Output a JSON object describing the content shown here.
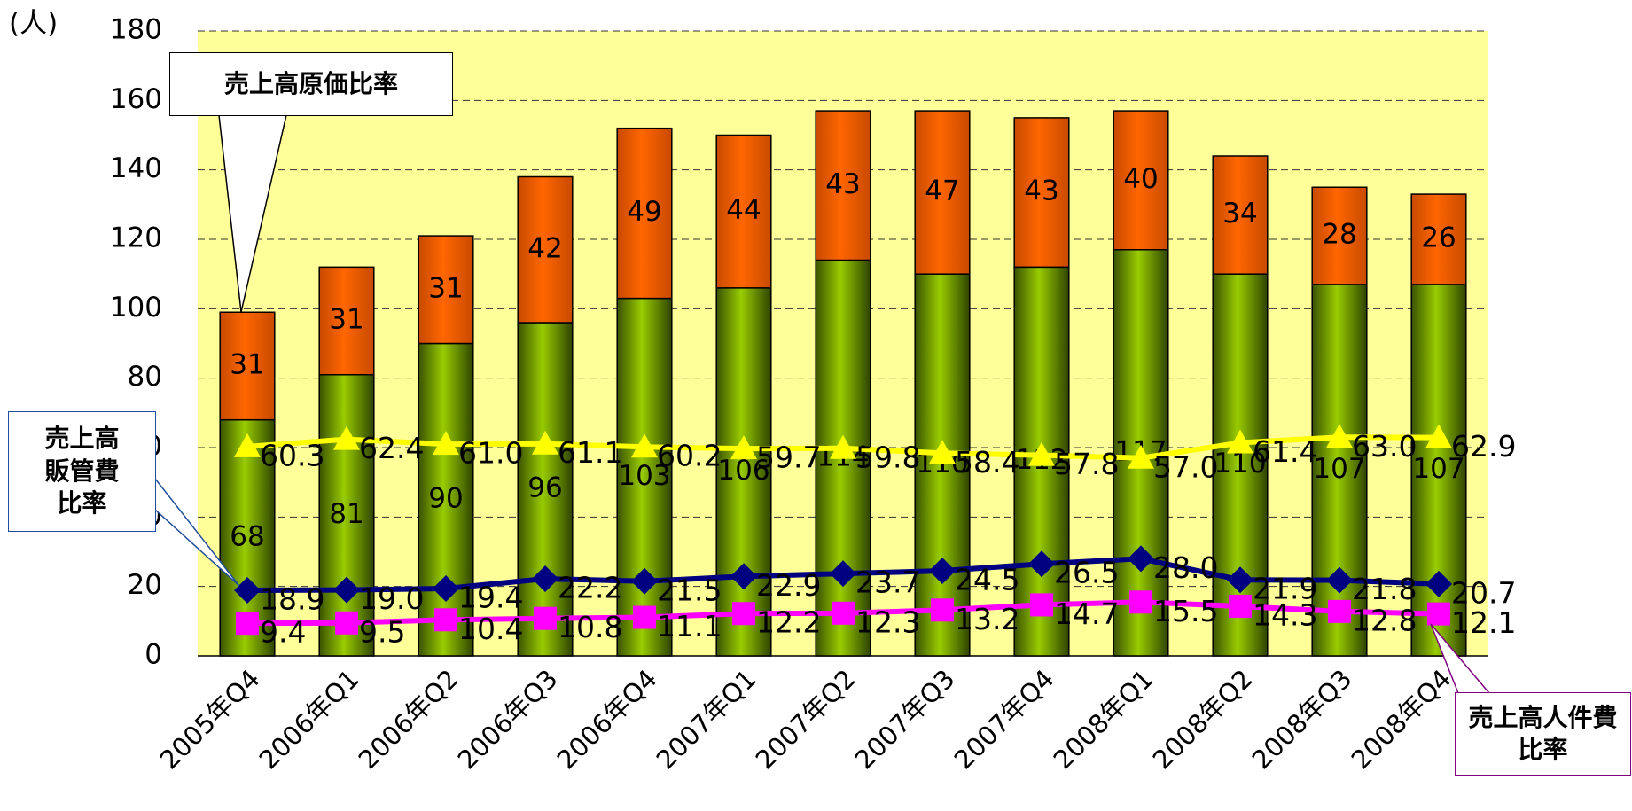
{
  "chart_data": {
    "type": "stacked_bar_line",
    "y_axis_label": "(人)",
    "categories": [
      "2005年Q4",
      "2006年Q1",
      "2006年Q2",
      "2006年Q3",
      "2006年Q4",
      "2007年Q1",
      "2007年Q2",
      "2007年Q3",
      "2007年Q4",
      "2008年Q1",
      "2008年Q2",
      "2008年Q3",
      "2008年Q4"
    ],
    "bar_series": [
      {
        "color": "#99cc00",
        "values": [
          68,
          81,
          90,
          96,
          103,
          106,
          114,
          110,
          112,
          117,
          110,
          107,
          107
        ]
      },
      {
        "color": "#ff6600",
        "values": [
          31,
          31,
          31,
          42,
          49,
          44,
          43,
          47,
          43,
          40,
          34,
          28,
          26
        ]
      }
    ],
    "series": [
      {
        "name": "売上高原価比率",
        "color": "#ffff00",
        "marker": "triangle",
        "values": [
          60.3,
          62.4,
          61.0,
          61.1,
          60.2,
          59.7,
          59.8,
          58.4,
          57.8,
          57.0,
          61.4,
          63.0,
          62.9
        ],
        "value_labels": [
          "60.3",
          "62.4",
          "61.0",
          "61.1",
          "60.2",
          "59.7",
          "59.8",
          "58.4",
          "57.8",
          "57.0",
          "61.4",
          "63.0",
          "62.9"
        ]
      },
      {
        "name": "売上高販管費比率",
        "color": "#000080",
        "marker": "diamond",
        "values": [
          18.9,
          19.0,
          19.4,
          22.2,
          21.5,
          22.9,
          23.7,
          24.5,
          26.5,
          28.0,
          21.9,
          21.8,
          20.7
        ],
        "value_labels": [
          "18.9",
          "19.0",
          "19.4",
          "22.2",
          "21.5",
          "22.9",
          "23.7",
          "24.5",
          "26.5",
          "28.0",
          "21.9",
          "21.8",
          "20.7"
        ]
      },
      {
        "name": "売上高人件費比率",
        "color": "#ff00ff",
        "marker": "square",
        "values": [
          9.4,
          9.5,
          10.4,
          10.8,
          11.1,
          12.2,
          12.3,
          13.2,
          14.7,
          15.5,
          14.3,
          12.8,
          12.1
        ],
        "value_labels": [
          "9.4",
          "9.5",
          "10.4",
          "10.8",
          "11.1",
          "12.2",
          "12.3",
          "13.2",
          "14.7",
          "15.5",
          "14.3",
          "12.8",
          "12.1"
        ]
      }
    ],
    "ylim": [
      0,
      180
    ],
    "yticks": [
      0,
      20,
      40,
      60,
      80,
      100,
      120,
      140,
      160,
      180
    ],
    "grid": true,
    "plot_background": "#ffff99"
  }
}
